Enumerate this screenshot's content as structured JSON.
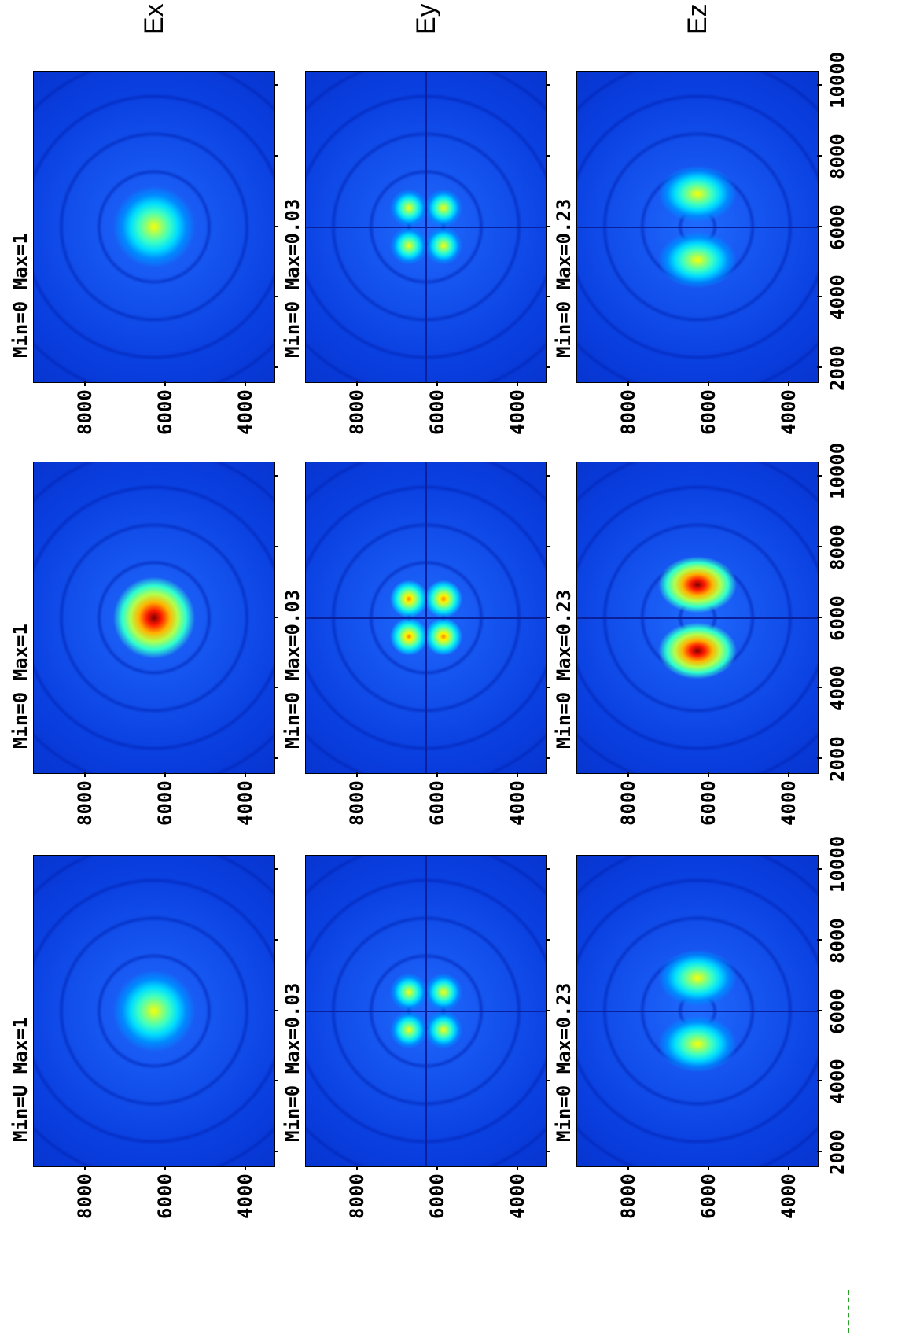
{
  "chart_data": {
    "type": "heatmap",
    "image_rotation": "rotated 90 degrees counter-clockwise",
    "colormap": "jet",
    "row_labels": [
      "Ex",
      "Ey",
      "Ez"
    ],
    "x_ticks": [
      2000,
      4000,
      6000,
      8000,
      10000
    ],
    "y_ticks": [
      4000,
      6000,
      8000
    ],
    "xlim": [
      1600,
      10400
    ],
    "ylim": [
      3300,
      9300
    ],
    "panels": [
      {
        "component": "Ex",
        "column": 1,
        "label": "Min=U  Max=1",
        "min": 0,
        "max": 1,
        "pattern": "single-spot",
        "peak_level": 0.62
      },
      {
        "component": "Ex",
        "column": 2,
        "label": "Min=0  Max=1",
        "min": 0,
        "max": 1,
        "pattern": "single-spot",
        "peak_level": 1.0
      },
      {
        "component": "Ex",
        "column": 3,
        "label": "Min=0  Max=1",
        "min": 0,
        "max": 1,
        "pattern": "single-spot",
        "peak_level": 0.62
      },
      {
        "component": "Ey",
        "column": 1,
        "label": "Min=0  Max=0.03",
        "min": 0,
        "max": 0.03,
        "pattern": "four-lobe",
        "peak_level": 0.62
      },
      {
        "component": "Ey",
        "column": 2,
        "label": "Min=0  Max=0.03",
        "min": 0,
        "max": 0.03,
        "pattern": "four-lobe",
        "peak_level": 0.75
      },
      {
        "component": "Ey",
        "column": 3,
        "label": "Min=0  Max=0.03",
        "min": 0,
        "max": 0.03,
        "pattern": "four-lobe",
        "peak_level": 0.62
      },
      {
        "component": "Ez",
        "column": 1,
        "label": "Min=0  Max=0.23",
        "min": 0,
        "max": 0.23,
        "pattern": "two-lobe",
        "peak_level": 0.62
      },
      {
        "component": "Ez",
        "column": 2,
        "label": "Min=0  Max=0.23",
        "min": 0,
        "max": 0.23,
        "pattern": "two-lobe",
        "peak_level": 1.0
      },
      {
        "component": "Ez",
        "column": 3,
        "label": "Min=0  Max=0.23",
        "min": 0,
        "max": 0.23,
        "pattern": "two-lobe",
        "peak_level": 0.62
      }
    ]
  }
}
